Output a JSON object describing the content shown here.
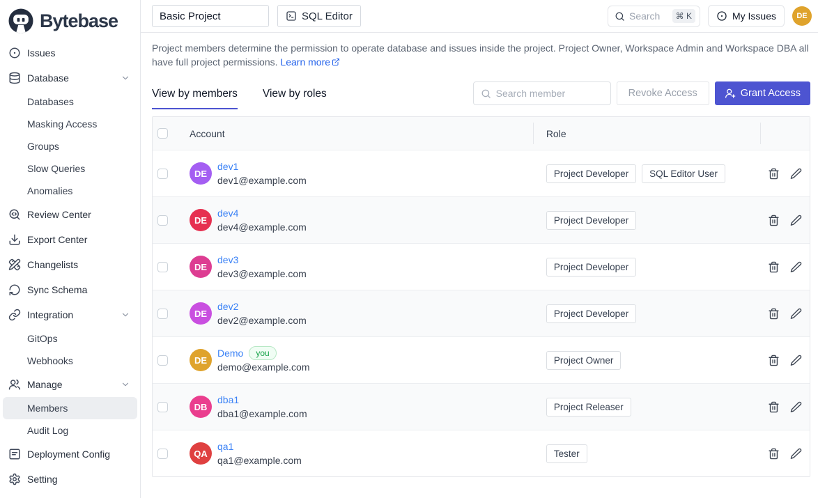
{
  "colors": {
    "accent": "#4d54d1",
    "link": "#3b82f6",
    "topbar_avatar_bg": "#dfa32c",
    "row_alt_bg": "#f9fafb",
    "you_badge_green": "#16a34a"
  },
  "sidebar": {
    "logo_text": "Bytebase",
    "items": [
      {
        "label": "Issues",
        "icon": "issues-icon",
        "indent": 0
      },
      {
        "label": "Database",
        "icon": "database-icon",
        "indent": 0,
        "chevron": true
      },
      {
        "label": "Databases",
        "indent": 1
      },
      {
        "label": "Masking Access",
        "indent": 1
      },
      {
        "label": "Groups",
        "indent": 1
      },
      {
        "label": "Slow Queries",
        "indent": 1
      },
      {
        "label": "Anomalies",
        "indent": 1
      },
      {
        "label": "Review Center",
        "icon": "review-center-icon",
        "indent": 0
      },
      {
        "label": "Export Center",
        "icon": "export-center-icon",
        "indent": 0
      },
      {
        "label": "Changelists",
        "icon": "changelists-icon",
        "indent": 0
      },
      {
        "label": "Sync Schema",
        "icon": "sync-schema-icon",
        "indent": 0
      },
      {
        "label": "Integration",
        "icon": "integration-icon",
        "indent": 0,
        "chevron": true
      },
      {
        "label": "GitOps",
        "indent": 1
      },
      {
        "label": "Webhooks",
        "indent": 1
      },
      {
        "label": "Manage",
        "icon": "manage-icon",
        "indent": 0,
        "chevron": true
      },
      {
        "label": "Members",
        "indent": 1,
        "active": true
      },
      {
        "label": "Audit Log",
        "indent": 1
      },
      {
        "label": "Deployment Config",
        "icon": "deployment-config-icon",
        "indent": 0
      },
      {
        "label": "Setting",
        "icon": "setting-icon",
        "indent": 0
      }
    ]
  },
  "topbar": {
    "project_select_value": "Basic Project",
    "sql_editor_label": "SQL Editor",
    "search_placeholder": "Search",
    "search_shortcut": "⌘ K",
    "my_issues_label": "My Issues",
    "avatar_initials": "DE"
  },
  "main": {
    "description": "Project members determine the permission to operate database and issues inside the project. Project Owner, Workspace Admin and Workspace DBA all have full project permissions.",
    "learn_more_label": "Learn more",
    "tabs": [
      {
        "label": "View by members",
        "active": true
      },
      {
        "label": "View by roles",
        "active": false
      }
    ],
    "search_member_placeholder": "Search member",
    "revoke_button_label": "Revoke Access",
    "grant_button_label": "Grant Access",
    "table": {
      "columns": [
        "Account",
        "Role"
      ],
      "rows": [
        {
          "name": "dev1",
          "email": "dev1@example.com",
          "initials": "DE",
          "avatar_color": "#a45ef2",
          "roles": [
            "Project Developer",
            "SQL Editor User"
          ],
          "you": false
        },
        {
          "name": "dev4",
          "email": "dev4@example.com",
          "initials": "DE",
          "avatar_color": "#e63050",
          "roles": [
            "Project Developer"
          ],
          "you": false
        },
        {
          "name": "dev3",
          "email": "dev3@example.com",
          "initials": "DE",
          "avatar_color": "#dd3d92",
          "roles": [
            "Project Developer"
          ],
          "you": false
        },
        {
          "name": "dev2",
          "email": "dev2@example.com",
          "initials": "DE",
          "avatar_color": "#c94fe0",
          "roles": [
            "Project Developer"
          ],
          "you": false
        },
        {
          "name": "Demo",
          "email": "demo@example.com",
          "initials": "DE",
          "avatar_color": "#dfa32c",
          "roles": [
            "Project Owner"
          ],
          "you": true,
          "you_label": "you"
        },
        {
          "name": "dba1",
          "email": "dba1@example.com",
          "initials": "DB",
          "avatar_color": "#ea3e8e",
          "roles": [
            "Project Releaser"
          ],
          "you": false
        },
        {
          "name": "qa1",
          "email": "qa1@example.com",
          "initials": "QA",
          "avatar_color": "#df4040",
          "roles": [
            "Tester"
          ],
          "you": false
        }
      ]
    }
  }
}
